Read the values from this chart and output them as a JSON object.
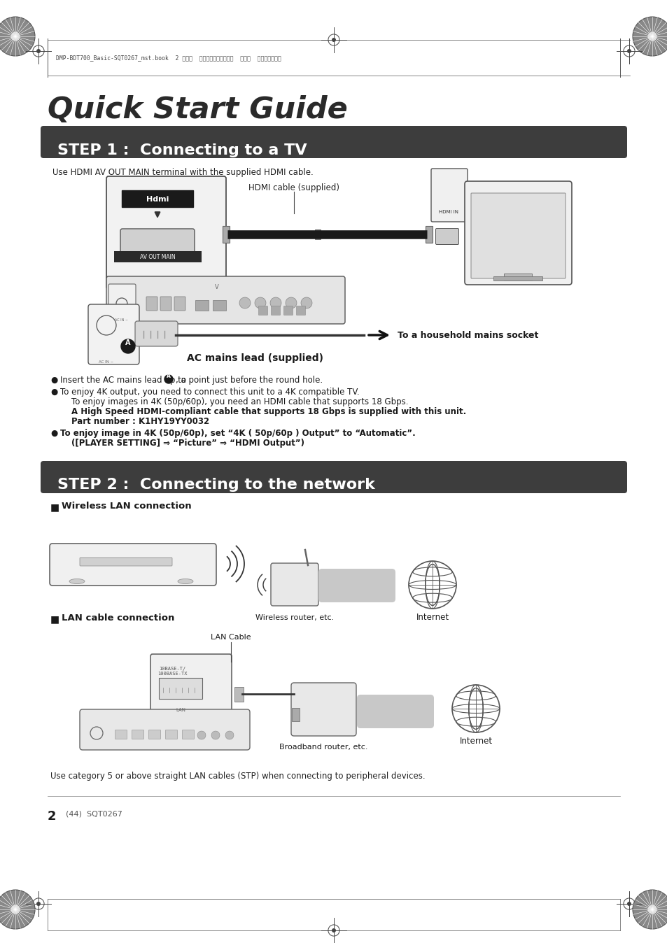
{
  "bg_color": "#ffffff",
  "page_width": 9.54,
  "page_height": 13.48,
  "header_text": "DMP-BDT700_Basic-SQT0267_mst.book  2 ページ  ２０１４年５月１３日  火曜日  午後４時５０分",
  "title": "Quick Start Guide",
  "step1_label": "STEP 1 :  Connecting to a TV",
  "step1_desc": "Use HDMI AV OUT MAIN terminal with the supplied HDMI cable.",
  "hdmi_cable_label": "HDMI cable (supplied)",
  "av_out_label": "AV OUT MAIN",
  "hdmi_in_label": "HDMI IN",
  "mains_arrow_label": "To a household mains socket",
  "ac_lead_label": "AC mains lead (supplied)",
  "bullet1a": "Insert the AC mains lead up to ",
  "bullet1b": ", a point just before the round hole.",
  "bullet2a": "To enjoy 4K output, you need to connect this unit to a 4K compatible TV.",
  "bullet2b": "To enjoy images in 4K (50p/60p), you need an HDMI cable that supports 18 Gbps.",
  "bullet2c": "A High Speed HDMI-compliant cable that supports 18 Gbps is supplied with this unit.",
  "bullet2d": "Part number : K1HY19YY0032",
  "bullet3a": "To enjoy image in 4K (50p/60p), set “4K ( 50p/60p ) Output” to “Automatic”.",
  "bullet3b": "([PLAYER SETTING] ⇒ “Picture” ⇒ “HDMI Output”)",
  "step2_label": "STEP 2 :  Connecting to the network",
  "wireless_label": "Wireless LAN connection",
  "wireless_router_label": "Wireless router, etc.",
  "internet_label1": "Internet",
  "lan_label": "LAN cable connection",
  "lan_cable_label": "LAN Cable",
  "broadband_label": "Broadband router, etc.",
  "internet_label2": "Internet",
  "footer_note": "Use category 5 or above straight LAN cables (STP) when connecting to peripheral devices.",
  "page_num": "2",
  "page_num2": "(44)  SQT0267",
  "step_bg_color": "#3d3d3d",
  "step_text_color": "#ffffff"
}
